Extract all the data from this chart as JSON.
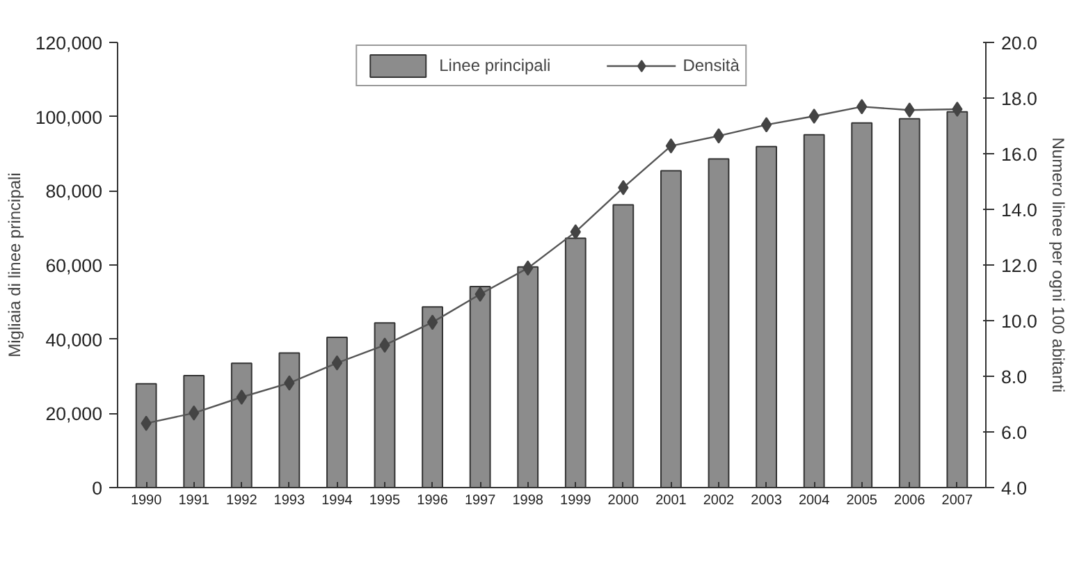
{
  "chart_data": {
    "type": "bar",
    "categories": [
      "1990",
      "1991",
      "1992",
      "1993",
      "1994",
      "1995",
      "1996",
      "1997",
      "1998",
      "1999",
      "2000",
      "2001",
      "2002",
      "2003",
      "2004",
      "2005",
      "2006",
      "2007"
    ],
    "ylabel": "Migliaia di linee principali",
    "y2label": "Numero linee per ogni 100 abitanti",
    "ylim": [
      0,
      120000
    ],
    "yticks": [
      {
        "value": 0,
        "label": "0"
      },
      {
        "value": 20000,
        "label": "20,000"
      },
      {
        "value": 40000,
        "label": "40,000"
      },
      {
        "value": 60000,
        "label": "60,000"
      },
      {
        "value": 80000,
        "label": "80,000"
      },
      {
        "value": 100000,
        "label": "100,000"
      },
      {
        "value": 120000,
        "label": "120,000"
      }
    ],
    "y2lim": [
      4,
      20
    ],
    "y2ticks": [
      {
        "value": 4,
        "label": "4.0"
      },
      {
        "value": 6,
        "label": "6.0"
      },
      {
        "value": 8,
        "label": "8.0"
      },
      {
        "value": 10,
        "label": "10.0"
      },
      {
        "value": 12,
        "label": "12.0"
      },
      {
        "value": 14,
        "label": "14.0"
      },
      {
        "value": 16,
        "label": "16.0"
      },
      {
        "value": 18,
        "label": "18.0"
      },
      {
        "value": 20,
        "label": "20.0"
      }
    ],
    "grid": false,
    "legend": "top",
    "series": [
      {
        "name": "Linee principali",
        "color": "#8c8c8c",
        "values": [
          28000,
          30200,
          33500,
          36300,
          40500,
          44400,
          48700,
          54200,
          59500,
          67200,
          76200,
          85400,
          88600,
          91900,
          95100,
          98300,
          99400,
          101300
        ]
      },
      {
        "name": "Densità",
        "type": "line",
        "axis": "y2",
        "marker": "diamond",
        "line_style": "solid",
        "color": "#555555",
        "values": [
          6.31,
          6.68,
          7.25,
          7.76,
          8.48,
          9.12,
          9.94,
          10.95,
          11.89,
          13.19,
          14.78,
          16.28,
          16.64,
          17.04,
          17.35,
          17.69,
          17.57,
          17.6
        ]
      }
    ]
  }
}
